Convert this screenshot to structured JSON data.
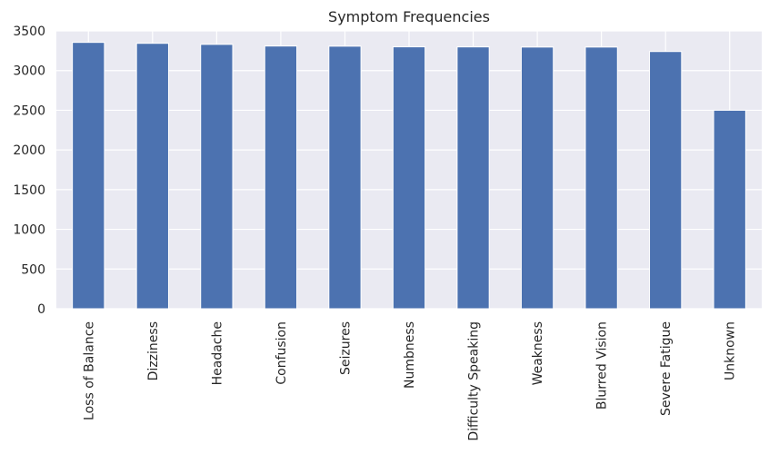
{
  "chart_data": {
    "type": "bar",
    "title": "Symptom Frequencies",
    "xlabel": "",
    "ylabel": "",
    "categories": [
      "Loss of Balance",
      "Dizziness",
      "Headache",
      "Confusion",
      "Seizures",
      "Numbness",
      "Difficulty Speaking",
      "Weakness",
      "Blurred Vision",
      "Severe Fatigue",
      "Unknown"
    ],
    "values": [
      3355,
      3343,
      3330,
      3309,
      3307,
      3299,
      3298,
      3296,
      3296,
      3240,
      2500
    ],
    "ylim": [
      0,
      3500
    ],
    "yticks": [
      0,
      500,
      1000,
      1500,
      2000,
      2500,
      3000,
      3500
    ],
    "grid": true,
    "legend": "none",
    "colors": {
      "bar": "#4c72b0",
      "background": "#eaeaf2",
      "grid": "#ffffff",
      "text": "#262626"
    }
  }
}
